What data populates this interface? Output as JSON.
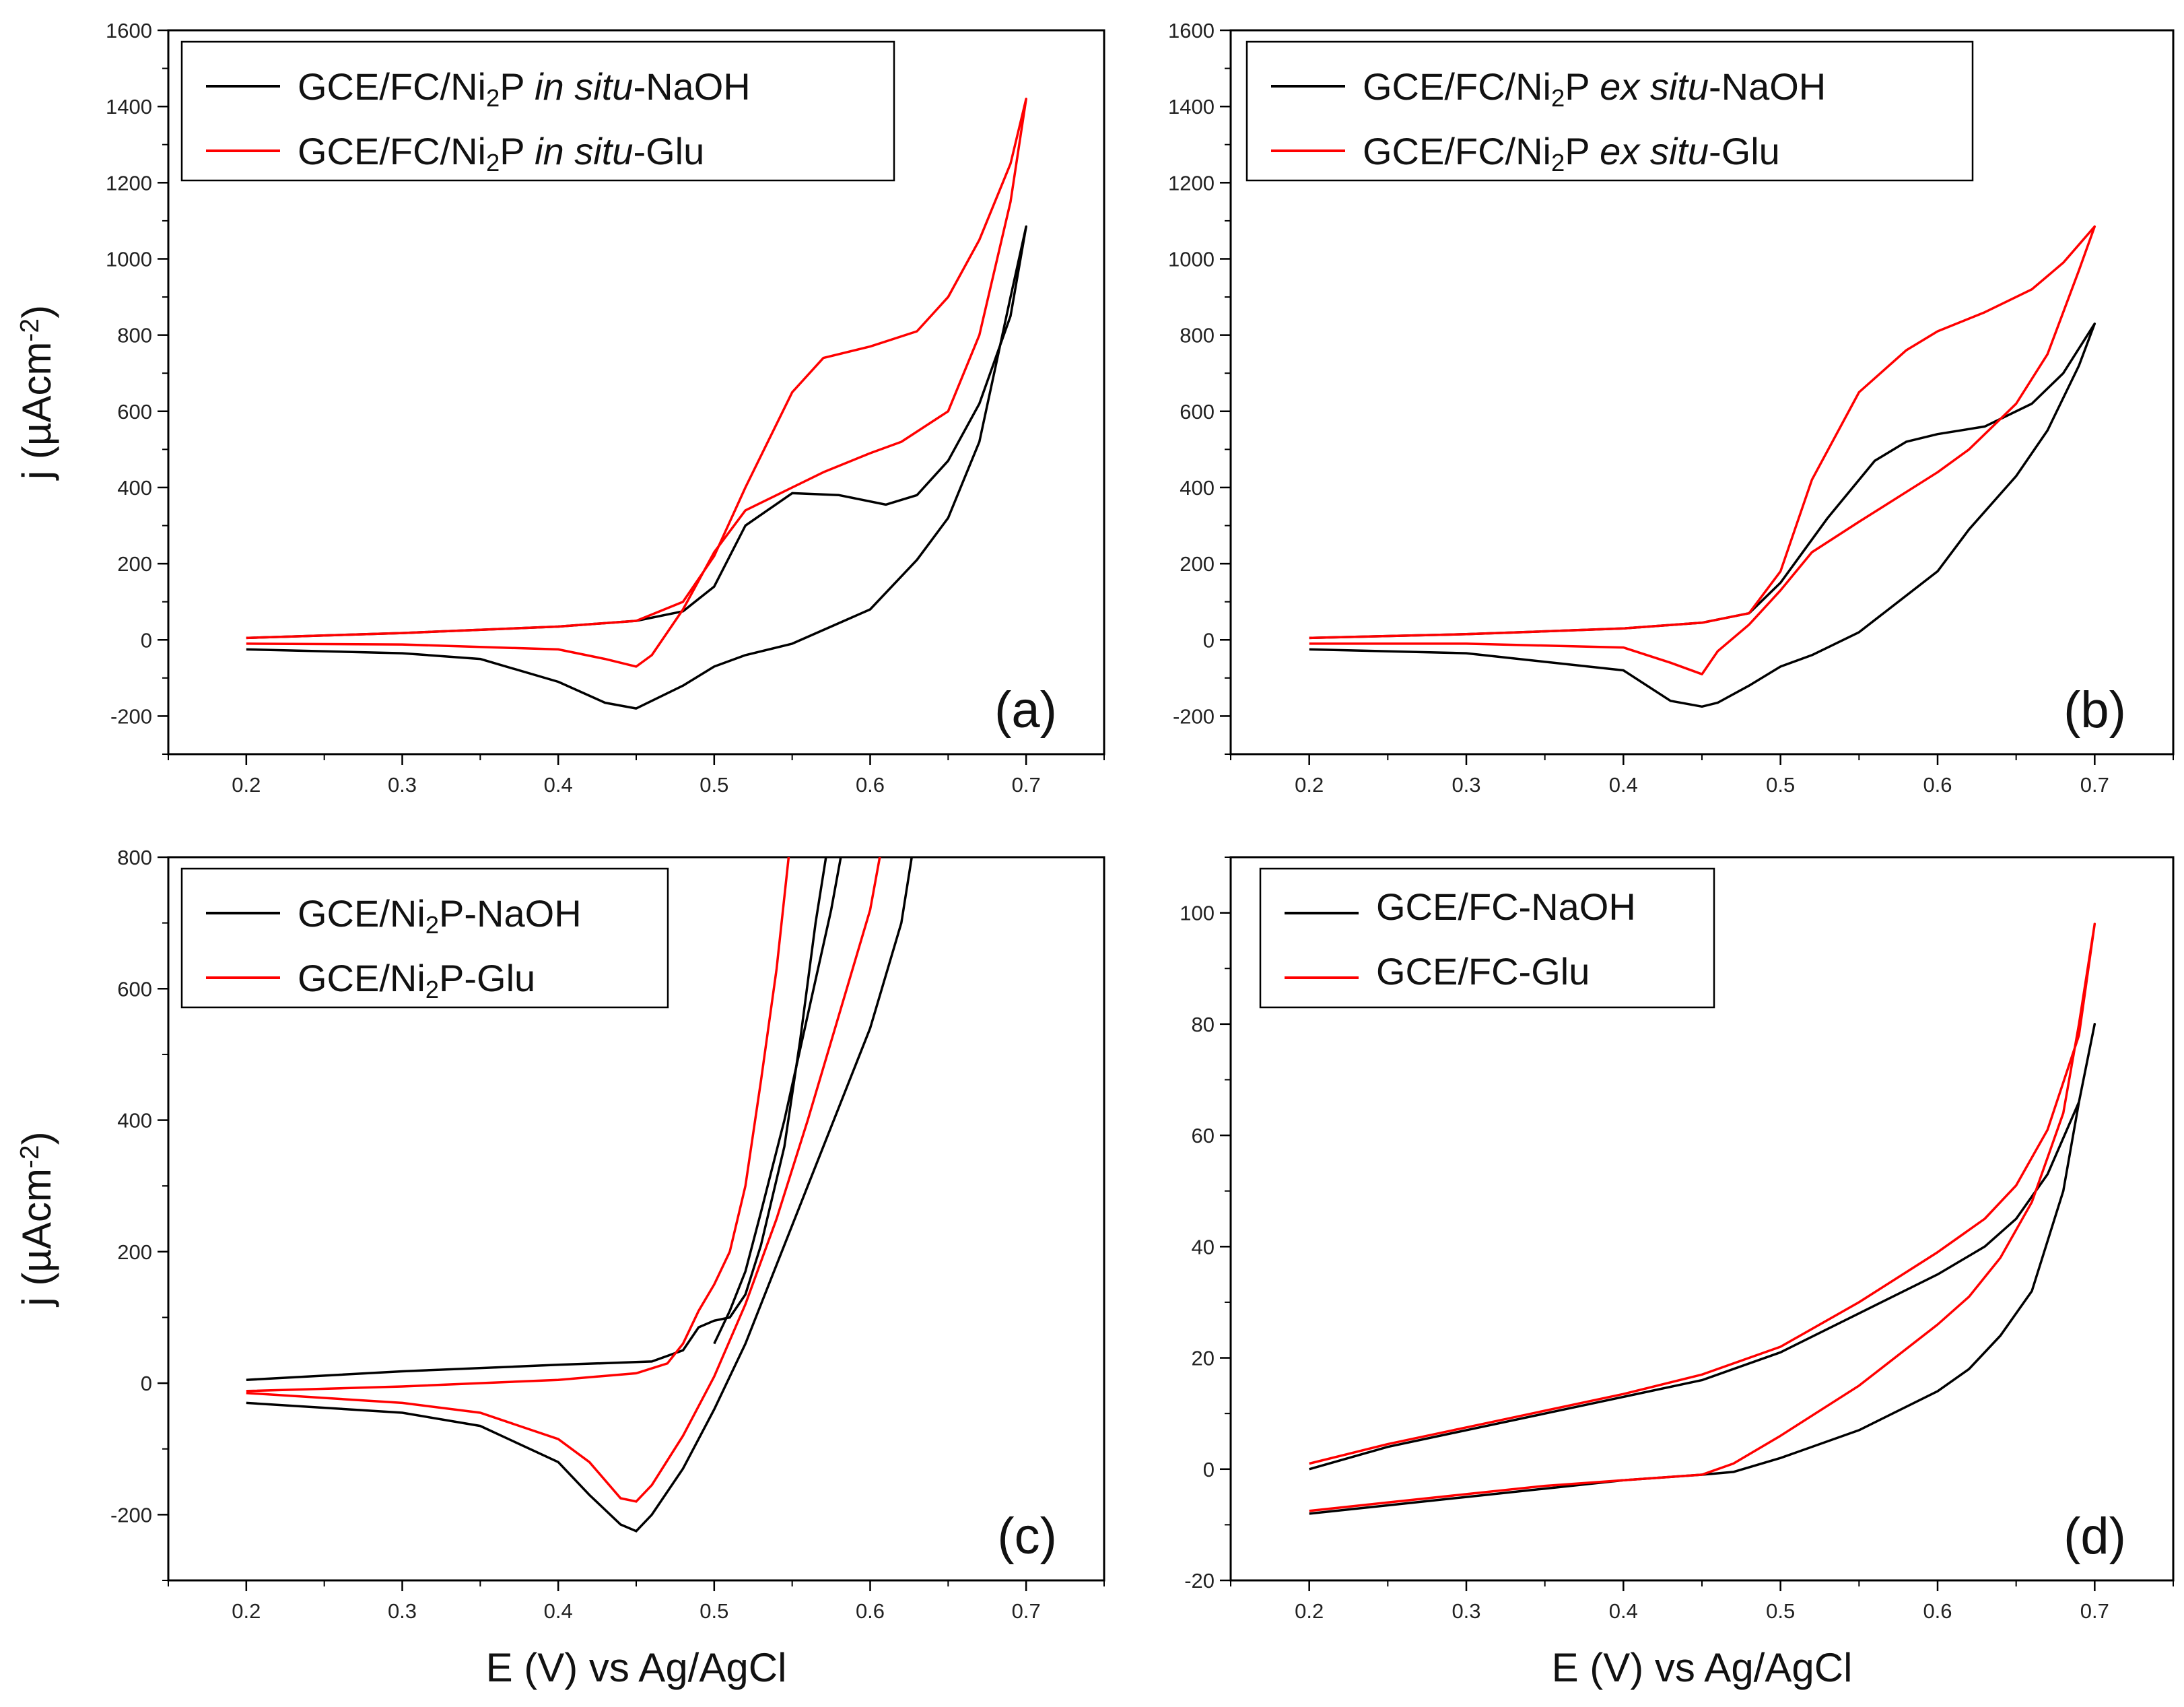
{
  "colors": {
    "naoh": "#000000",
    "glu": "#ff0000"
  },
  "chart_data": [
    {
      "type": "line",
      "panel_label": "(a)",
      "ylabel_parts": [
        "j (",
        "µAcm",
        "-2",
        ")"
      ],
      "xlabel": "",
      "xlim": [
        0.15,
        0.75
      ],
      "ylim": [
        -300,
        1600
      ],
      "xticks": [
        "0.2",
        "0.3",
        "0.4",
        "0.5",
        "0.6",
        "0.7"
      ],
      "yticks": [
        "-200",
        "0",
        "200",
        "400",
        "600",
        "800",
        "1000",
        "1200",
        "1400",
        "1600"
      ],
      "legend_position": "top-left",
      "series": [
        {
          "name": "GCE/FC/Ni2P in situ-NaOH",
          "legend_parts": [
            "GCE/FC/Ni",
            "2",
            "P ",
            "in situ",
            "-NaOH"
          ],
          "color": "#000000",
          "x": [
            0.2,
            0.3,
            0.4,
            0.45,
            0.48,
            0.5,
            0.52,
            0.55,
            0.58,
            0.61,
            0.63,
            0.65,
            0.67,
            0.69,
            0.7,
            0.69,
            0.67,
            0.65,
            0.63,
            0.6,
            0.55,
            0.52,
            0.5,
            0.48,
            0.45,
            0.43,
            0.4,
            0.35,
            0.3,
            0.2
          ],
          "y": [
            5,
            18,
            35,
            50,
            75,
            140,
            300,
            385,
            380,
            355,
            380,
            470,
            620,
            850,
            1085,
            900,
            520,
            320,
            210,
            80,
            -10,
            -40,
            -70,
            -120,
            -180,
            -165,
            -110,
            -50,
            -35,
            -25
          ]
        },
        {
          "name": "GCE/FC/Ni2P in situ-Glu",
          "legend_parts": [
            "GCE/FC/Ni",
            "2",
            "P ",
            "in situ",
            "-Glu"
          ],
          "color": "#ff0000",
          "x": [
            0.2,
            0.3,
            0.4,
            0.45,
            0.48,
            0.5,
            0.52,
            0.55,
            0.57,
            0.6,
            0.63,
            0.65,
            0.67,
            0.69,
            0.7,
            0.69,
            0.67,
            0.65,
            0.62,
            0.6,
            0.57,
            0.55,
            0.52,
            0.5,
            0.48,
            0.46,
            0.45,
            0.43,
            0.4,
            0.3,
            0.2
          ],
          "y": [
            5,
            18,
            35,
            50,
            100,
            220,
            400,
            650,
            740,
            770,
            810,
            900,
            1050,
            1250,
            1420,
            1150,
            800,
            600,
            520,
            490,
            440,
            400,
            340,
            230,
            80,
            -40,
            -70,
            -50,
            -25,
            -12,
            -10
          ]
        }
      ]
    },
    {
      "type": "line",
      "panel_label": "(b)",
      "xlim": [
        0.15,
        0.75
      ],
      "ylim": [
        -300,
        1600
      ],
      "xticks": [
        "0.2",
        "0.3",
        "0.4",
        "0.5",
        "0.6",
        "0.7"
      ],
      "yticks": [
        "-200",
        "0",
        "200",
        "400",
        "600",
        "800",
        "1000",
        "1200",
        "1400",
        "1600"
      ],
      "legend_position": "top-left",
      "series": [
        {
          "name": "GCE/FC/Ni2P ex situ-NaOH",
          "legend_parts": [
            "GCE/FC/Ni",
            "2",
            "P ",
            "ex situ",
            "-NaOH"
          ],
          "color": "#000000",
          "x": [
            0.2,
            0.3,
            0.4,
            0.45,
            0.48,
            0.5,
            0.53,
            0.56,
            0.58,
            0.6,
            0.63,
            0.66,
            0.68,
            0.7,
            0.69,
            0.67,
            0.65,
            0.62,
            0.6,
            0.55,
            0.52,
            0.5,
            0.48,
            0.46,
            0.45,
            0.43,
            0.4,
            0.3,
            0.2
          ],
          "y": [
            5,
            15,
            30,
            45,
            70,
            150,
            320,
            470,
            520,
            540,
            560,
            620,
            700,
            830,
            720,
            550,
            430,
            290,
            180,
            20,
            -40,
            -70,
            -120,
            -165,
            -175,
            -160,
            -80,
            -35,
            -25
          ]
        },
        {
          "name": "GCE/FC/Ni2P ex situ-Glu",
          "legend_parts": [
            "GCE/FC/Ni",
            "2",
            "P ",
            "ex situ",
            "-Glu"
          ],
          "color": "#ff0000",
          "x": [
            0.2,
            0.3,
            0.4,
            0.45,
            0.48,
            0.5,
            0.52,
            0.55,
            0.58,
            0.6,
            0.63,
            0.66,
            0.68,
            0.7,
            0.69,
            0.67,
            0.65,
            0.62,
            0.6,
            0.55,
            0.52,
            0.5,
            0.48,
            0.46,
            0.45,
            0.43,
            0.4,
            0.3,
            0.2
          ],
          "y": [
            5,
            15,
            30,
            45,
            70,
            180,
            420,
            650,
            760,
            810,
            860,
            920,
            990,
            1085,
            970,
            750,
            620,
            500,
            440,
            310,
            230,
            130,
            40,
            -30,
            -90,
            -60,
            -20,
            -10,
            -10
          ]
        }
      ]
    },
    {
      "type": "line",
      "panel_label": "(c)",
      "ylabel_parts": [
        "j (",
        "µAcm",
        "-2",
        ")"
      ],
      "xlabel": "E (V) vs Ag/AgCl",
      "xlim": [
        0.15,
        0.75
      ],
      "ylim": [
        -300,
        800
      ],
      "xticks": [
        "0.2",
        "0.3",
        "0.4",
        "0.5",
        "0.6",
        "0.7"
      ],
      "yticks": [
        "-200",
        "0",
        "200",
        "400",
        "600",
        "800"
      ],
      "legend_position": "top-left",
      "series": [
        {
          "name": "GCE/Ni2P-NaOH",
          "legend_parts": [
            "GCE/Ni",
            "2",
            "P-NaOH"
          ],
          "color": "#000000",
          "x": [
            0.2,
            0.3,
            0.4,
            0.46,
            0.48,
            0.49,
            0.5,
            0.51,
            0.52,
            0.53,
            0.55,
            0.57,
            0.58,
            0.59,
            0.6,
            0.62,
            0.64,
            0.66,
            0.67,
            0.68,
            0.69,
            0.7,
            0.69,
            0.68,
            0.67,
            0.66,
            0.64,
            0.62,
            0.6,
            0.58,
            0.56,
            0.54,
            0.52,
            0.5,
            0.48,
            0.46,
            0.45,
            0.44,
            0.42,
            0.4,
            0.35,
            0.3,
            0.2
          ],
          "y": [
            5,
            18,
            30,
            35,
            50,
            85,
            95,
            100,
            130,
            200,
            380,
            580,
            680,
            780,
            820,
            820,
            820,
            820,
            820,
            820,
            820,
            820,
            820,
            820,
            820,
            820,
            820,
            820,
            820,
            780,
            720,
            660,
            590,
            520,
            440,
            370,
            320,
            280,
            220,
            160,
            90,
            50,
            15
          ],
          "y_reverse": [
            -30,
            -50,
            -100,
            -180,
            -210,
            -225,
            -210,
            -180,
            -110,
            -30,
            40,
            100,
            180,
            260,
            320,
            370,
            440,
            520,
            640,
            790
          ]
        },
        {
          "name": "GCE/Ni2P-Glu",
          "legend_parts": [
            "GCE/Ni",
            "2",
            "P-Glu"
          ],
          "color": "#ff0000"
        }
      ]
    },
    {
      "type": "line",
      "panel_label": "(d)",
      "xlabel": "E (V) vs Ag/AgCl",
      "xlim": [
        0.15,
        0.75
      ],
      "ylim": [
        -20,
        110
      ],
      "xticks": [
        "0.2",
        "0.3",
        "0.4",
        "0.5",
        "0.6",
        "0.7"
      ],
      "yticks": [
        "-20",
        "0",
        "20",
        "40",
        "60",
        "80",
        "100"
      ],
      "legend_position": "top-left",
      "series": [
        {
          "name": "GCE/FC-NaOH",
          "legend_parts": [
            "GCE/FC-NaOH"
          ],
          "color": "#000000",
          "x": [
            0.2,
            0.25,
            0.3,
            0.35,
            0.4,
            0.45,
            0.5,
            0.55,
            0.6,
            0.63,
            0.65,
            0.67,
            0.69,
            0.7,
            0.69,
            0.68,
            0.66,
            0.64,
            0.62,
            0.6,
            0.55,
            0.5,
            0.47,
            0.45,
            0.4,
            0.35,
            0.3,
            0.25,
            0.2
          ],
          "y": [
            0,
            4,
            7,
            10,
            13,
            16,
            21,
            28,
            35,
            40,
            45,
            53,
            66,
            80,
            66,
            50,
            32,
            24,
            18,
            14,
            7,
            2,
            -0.5,
            -1,
            -2,
            -3.5,
            -5,
            -6.5,
            -8
          ]
        },
        {
          "name": "GCE/FC-Glu",
          "legend_parts": [
            "GCE/FC-Glu"
          ],
          "color": "#ff0000",
          "x": [
            0.2,
            0.25,
            0.3,
            0.35,
            0.4,
            0.45,
            0.5,
            0.55,
            0.6,
            0.63,
            0.65,
            0.67,
            0.69,
            0.7,
            0.69,
            0.68,
            0.66,
            0.64,
            0.62,
            0.6,
            0.55,
            0.5,
            0.47,
            0.45,
            0.4,
            0.35,
            0.3,
            0.25,
            0.2
          ],
          "y": [
            1,
            4.5,
            7.5,
            10.5,
            13.5,
            17,
            22,
            30,
            39,
            45,
            51,
            61,
            78,
            98,
            80,
            64,
            48,
            38,
            31,
            26,
            15,
            6,
            1,
            -1,
            -2,
            -3,
            -4.5,
            -6,
            -7.5
          ]
        }
      ]
    }
  ]
}
